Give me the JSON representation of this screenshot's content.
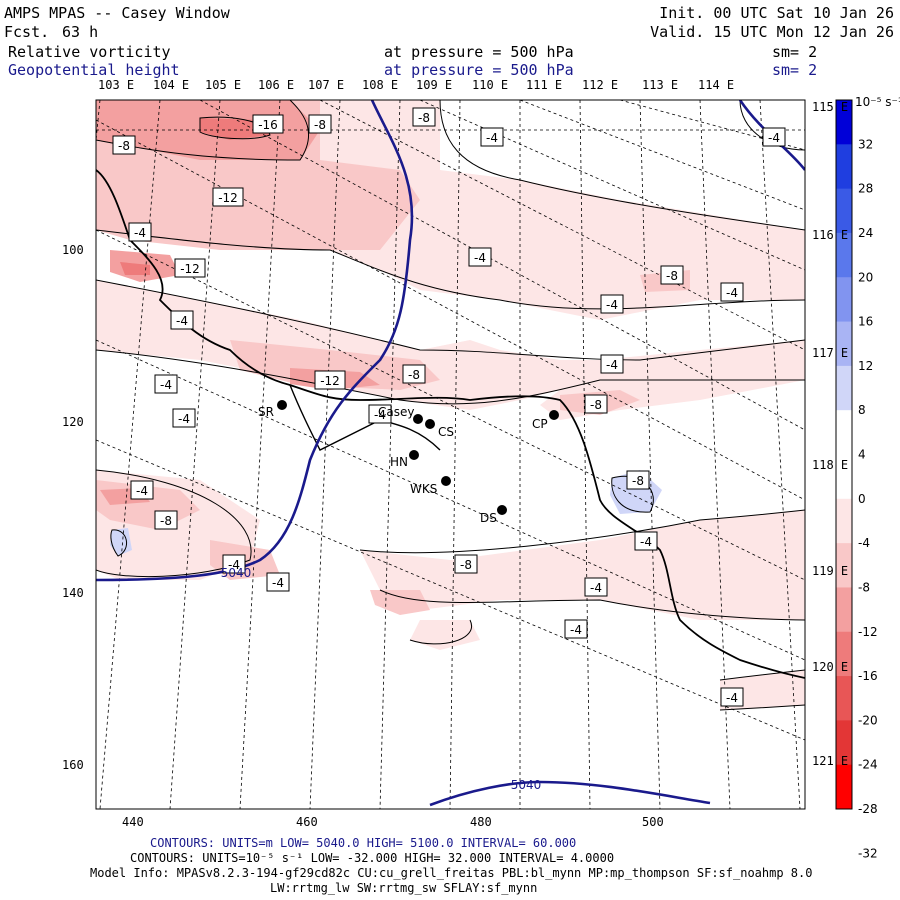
{
  "header": {
    "model": "AMPS MPAS -- Casey Window",
    "fcst_label": "Fcst.",
    "fcst_value": "63 h",
    "init": "Init. 00 UTC Sat 10 Jan 26",
    "valid": "Valid. 15 UTC Mon 12 Jan 26",
    "field1_name": "Relative vorticity",
    "field1_level": "at pressure =  500 hPa",
    "field1_sm": "sm= 2",
    "field2_name": "Geopotential height",
    "field2_level": "at pressure =  500 hPa",
    "field2_sm": "sm= 2"
  },
  "axes": {
    "lon_top": [
      "103 E",
      "104 E",
      "105 E",
      "106 E",
      "107 E",
      "108 E",
      "109 E",
      "110 E",
      "111 E",
      "112 E",
      "113 E",
      "114 E"
    ],
    "lon_right": [
      "115 E",
      "116 E",
      "117 E",
      "118 E",
      "119 E",
      "120 E",
      "121 E"
    ],
    "x_ticks": [
      "440",
      "460",
      "480",
      "500"
    ],
    "y_ticks": [
      "100",
      "120",
      "140",
      "160"
    ]
  },
  "colorbar": {
    "unit_label": "10⁻⁵ s⁻¹",
    "labels": [
      "32",
      "28",
      "24",
      "20",
      "16",
      "12",
      "8",
      "4",
      "0",
      "-4",
      "-8",
      "-12",
      "-16",
      "-20",
      "-24",
      "-28",
      "-32"
    ],
    "colors": [
      "#0000d8",
      "#1f3ee0",
      "#3a5ae6",
      "#5a78ec",
      "#8194f0",
      "#a9b4f4",
      "#d0d6f8",
      "#ffffff",
      "#ffffff",
      "#fde6e6",
      "#f9c8c8",
      "#f3a0a0",
      "#ee7b7b",
      "#e85656",
      "#e33636",
      "#ff0000"
    ]
  },
  "contour_labels": [
    "-16",
    "-8",
    "-8",
    "-4",
    "-8",
    "-12",
    "-4",
    "-4",
    "-12",
    "-8",
    "-4",
    "-4",
    "-4",
    "-4",
    "-12",
    "-8",
    "-4",
    "-4",
    "-8",
    "-4",
    "-4",
    "-8",
    "-8",
    "-4",
    "-4",
    "-8",
    "-4",
    "-4",
    "-4",
    "-4",
    "-4"
  ],
  "height_labels": [
    "5040",
    "5040"
  ],
  "stations": [
    "SR",
    "Casey",
    "CS",
    "HN",
    "WKS",
    "DS",
    "CP"
  ],
  "footer": {
    "contours1_label": "CONTOURS:  UNITS=m  LOW=  5040.0          HIGH=  5100.0          INTERVAL=   60.000",
    "contours2_label": "CONTOURS:  UNITS=10⁻⁵ s⁻¹  LOW= -32.000          HIGH=  32.000          INTERVAL=   4.0000",
    "model_info": "Model Info: MPASv8.2.3-194-gf29cd82c CU:cu_grell_freitas PBL:bl_mynn MP:mp_thompson SF:sf_noahmp 8.0",
    "model_info2": "LW:rrtmg_lw SW:rrtmg_sw SFLAY:sf_mynn"
  }
}
